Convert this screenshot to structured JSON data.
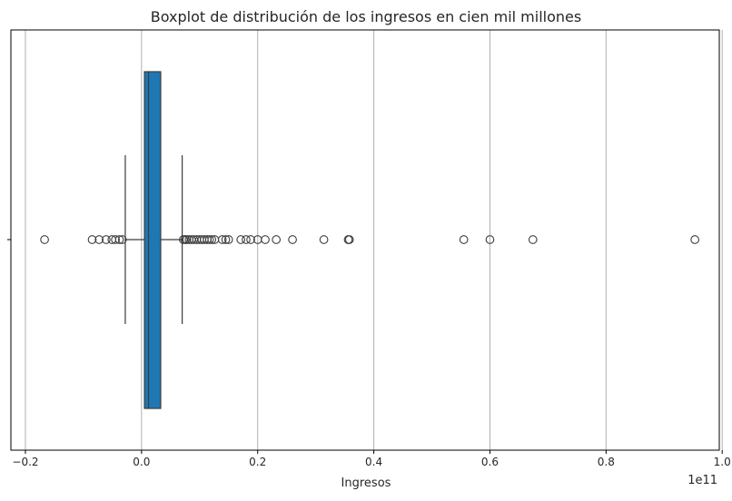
{
  "chart_data": {
    "type": "boxplot",
    "orientation": "horizontal",
    "title": "Boxplot de distribución de los ingresos en cien mil millones",
    "xlabel": "Ingresos",
    "ylabel": "",
    "x_offset_label": "1e11",
    "xlim": [
      -0.225,
      0.995
    ],
    "x_ticks": [
      -0.2,
      0.0,
      0.2,
      0.4,
      0.6,
      0.8,
      1.0
    ],
    "x_tick_labels": [
      "−0.2",
      "0.0",
      "0.2",
      "0.4",
      "0.6",
      "0.8",
      "1.0"
    ],
    "grid": "x",
    "box": {
      "whisker_low": -0.028,
      "q1": 0.005,
      "median": 0.012,
      "q3": 0.033,
      "whisker_high": 0.07,
      "color": "#1f77b4"
    },
    "outliers": [
      -0.167,
      -0.085,
      -0.073,
      -0.061,
      -0.051,
      -0.045,
      -0.038,
      -0.033,
      0.072,
      0.075,
      0.078,
      0.082,
      0.086,
      0.09,
      0.095,
      0.1,
      0.104,
      0.108,
      0.113,
      0.117,
      0.121,
      0.126,
      0.139,
      0.145,
      0.15,
      0.171,
      0.18,
      0.188,
      0.2,
      0.213,
      0.232,
      0.26,
      0.314,
      0.356,
      0.358,
      0.555,
      0.6,
      0.674,
      0.953
    ]
  }
}
